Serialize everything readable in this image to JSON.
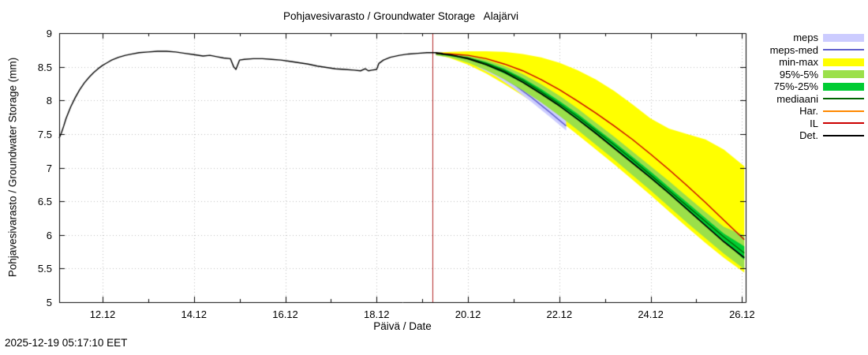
{
  "timestamp": "2025-12-19 05:17:10 EET",
  "chart_data": {
    "type": "line",
    "title": "Pohjavesivarasto / Groundwater Storage   Alajärvi",
    "xlabel": "Päivä / Date",
    "ylabel": "Pohjavesivarasto / Groundwater Storage (mm)",
    "xlim": [
      11.05,
      26.08
    ],
    "ylim": [
      5,
      9
    ],
    "grid": true,
    "grid_color": "#bdbdbd",
    "forecast_start_x": 19.22,
    "forecast_line_color": "#b22222",
    "x_ticks": [
      {
        "x": 12,
        "label": "12.12"
      },
      {
        "x": 14,
        "label": "14.12"
      },
      {
        "x": 16,
        "label": "16.12"
      },
      {
        "x": 18,
        "label": "18.12"
      },
      {
        "x": 20,
        "label": "20.12"
      },
      {
        "x": 22,
        "label": "22.12"
      },
      {
        "x": 24,
        "label": "24.12"
      },
      {
        "x": 26,
        "label": "26.12"
      }
    ],
    "x_minor_ticks": [
      13,
      15,
      17,
      19,
      21,
      23,
      25
    ],
    "y_ticks": [
      {
        "y": 5,
        "label": "5"
      },
      {
        "y": 5.5,
        "label": "5.5"
      },
      {
        "y": 6,
        "label": "6"
      },
      {
        "y": 6.5,
        "label": "6.5"
      },
      {
        "y": 7,
        "label": "7"
      },
      {
        "y": 7.5,
        "label": "7.5"
      },
      {
        "y": 8,
        "label": "8"
      },
      {
        "y": 8.5,
        "label": "8.5"
      },
      {
        "y": 9,
        "label": "9"
      }
    ],
    "legend": [
      {
        "label": "meps",
        "swatch": "band",
        "color": "#ccccff"
      },
      {
        "label": "meps-med",
        "swatch": "line",
        "color": "#6060cc"
      },
      {
        "label": "min-max",
        "swatch": "band",
        "color": "#ffff00"
      },
      {
        "label": "95%-5%",
        "swatch": "band",
        "color": "#9be04a"
      },
      {
        "label": "75%-25%",
        "swatch": "band",
        "color": "#00cc33"
      },
      {
        "label": "mediaani",
        "swatch": "line",
        "color": "#006400"
      },
      {
        "label": "Har.",
        "swatch": "line",
        "color": "#ff8800"
      },
      {
        "label": "IL",
        "swatch": "line",
        "color": "#cc0000"
      },
      {
        "label": "Det.",
        "swatch": "line",
        "color": "#000000"
      }
    ],
    "observed": {
      "name": "observed",
      "color": "#000000",
      "x": [
        11.05,
        11.1,
        11.15,
        11.2,
        11.3,
        11.4,
        11.5,
        11.6,
        11.7,
        11.8,
        11.9,
        12.0,
        12.1,
        12.2,
        12.35,
        12.5,
        12.65,
        12.8,
        13.0,
        13.2,
        13.4,
        13.6,
        13.8,
        14.0,
        14.2,
        14.35,
        14.5,
        14.65,
        14.8,
        14.87,
        14.92,
        15.0,
        15.1,
        15.3,
        15.5,
        15.7,
        15.9,
        16.1,
        16.3,
        16.5,
        16.7,
        16.9,
        17.1,
        17.3,
        17.5,
        17.65,
        17.75,
        17.82,
        17.9,
        18.0,
        18.05,
        18.15,
        18.3,
        18.5,
        18.7,
        18.9,
        19.1,
        19.3,
        19.45
      ],
      "y": [
        7.44,
        7.52,
        7.62,
        7.73,
        7.9,
        8.04,
        8.16,
        8.26,
        8.34,
        8.41,
        8.47,
        8.52,
        8.56,
        8.6,
        8.64,
        8.67,
        8.69,
        8.71,
        8.72,
        8.73,
        8.73,
        8.72,
        8.7,
        8.68,
        8.66,
        8.67,
        8.65,
        8.63,
        8.62,
        8.5,
        8.46,
        8.6,
        8.61,
        8.62,
        8.62,
        8.61,
        8.6,
        8.58,
        8.56,
        8.54,
        8.51,
        8.49,
        8.47,
        8.46,
        8.45,
        8.44,
        8.47,
        8.44,
        8.45,
        8.46,
        8.55,
        8.6,
        8.64,
        8.67,
        8.69,
        8.7,
        8.71,
        8.71,
        8.7
      ]
    },
    "forecast_x": [
      19.3,
      19.6,
      20.0,
      20.4,
      20.8,
      21.2,
      21.6,
      22.0,
      22.4,
      22.8,
      23.2,
      23.6,
      24.0,
      24.4,
      24.8,
      25.2,
      25.6,
      26.05
    ],
    "bands": {
      "minmax": {
        "name": "min-max",
        "color": "#ffff00",
        "x": [
          19.3,
          19.6,
          20.0,
          20.4,
          20.8,
          21.2,
          21.6,
          22.0,
          22.4,
          22.8,
          23.2,
          23.6,
          24.0,
          24.4,
          24.8,
          25.2,
          25.6,
          26.05
        ],
        "upper": [
          8.71,
          8.72,
          8.73,
          8.73,
          8.72,
          8.69,
          8.64,
          8.56,
          8.45,
          8.31,
          8.14,
          7.94,
          7.73,
          7.58,
          7.5,
          7.42,
          7.27,
          7.02
        ],
        "lower": [
          8.68,
          8.63,
          8.53,
          8.4,
          8.24,
          8.07,
          7.89,
          7.7,
          7.49,
          7.27,
          7.05,
          6.82,
          6.59,
          6.35,
          6.11,
          5.88,
          5.66,
          5.44
        ]
      },
      "meps": {
        "name": "meps",
        "color": "#ccccff",
        "x": [
          20.2,
          20.6,
          21.0,
          21.4,
          21.8,
          22.15
        ],
        "upper": [
          8.57,
          8.47,
          8.33,
          8.16,
          7.96,
          7.77
        ],
        "lower": [
          8.5,
          8.36,
          8.18,
          7.97,
          7.75,
          7.55
        ]
      },
      "p95": {
        "name": "95%-5%",
        "color": "#9be04a",
        "x": [
          19.3,
          19.6,
          20.0,
          20.4,
          20.8,
          21.2,
          21.6,
          22.0,
          22.4,
          22.8,
          23.2,
          23.6,
          24.0,
          24.4,
          24.8,
          25.2,
          25.6,
          26.05
        ],
        "upper": [
          8.7,
          8.69,
          8.66,
          8.6,
          8.51,
          8.39,
          8.24,
          8.07,
          7.88,
          7.67,
          7.46,
          7.24,
          7.02,
          6.8,
          6.57,
          6.34,
          6.12,
          5.99
        ],
        "lower": [
          8.67,
          8.64,
          8.56,
          8.45,
          8.31,
          8.15,
          7.97,
          7.77,
          7.56,
          7.34,
          7.12,
          6.89,
          6.66,
          6.42,
          6.18,
          5.95,
          5.72,
          5.49
        ]
      },
      "p75": {
        "name": "75%-25%",
        "color": "#00cc33",
        "x": [
          19.3,
          19.6,
          20.0,
          20.4,
          20.8,
          21.2,
          21.6,
          22.0,
          22.4,
          22.8,
          23.2,
          23.6,
          24.0,
          24.4,
          24.8,
          25.2,
          25.6,
          26.05
        ],
        "upper": [
          8.7,
          8.68,
          8.64,
          8.57,
          8.47,
          8.33,
          8.17,
          7.99,
          7.8,
          7.59,
          7.38,
          7.16,
          6.94,
          6.71,
          6.48,
          6.25,
          6.02,
          5.83
        ],
        "lower": [
          8.69,
          8.66,
          8.61,
          8.52,
          8.4,
          8.26,
          8.09,
          7.91,
          7.71,
          7.5,
          7.29,
          7.07,
          6.84,
          6.61,
          6.37,
          6.14,
          5.91,
          5.63
        ]
      }
    },
    "lines": {
      "meps_med": {
        "name": "meps-med",
        "color": "#6060cc",
        "width": 1.4,
        "x": [
          20.2,
          20.6,
          21.0,
          21.4,
          21.8,
          22.15
        ],
        "y": [
          8.53,
          8.41,
          8.24,
          8.04,
          7.82,
          7.62
        ]
      },
      "mediaani": {
        "name": "mediaani",
        "color": "#006400",
        "width": 1.4,
        "y": [
          8.7,
          8.67,
          8.63,
          8.55,
          8.44,
          8.3,
          8.13,
          7.95,
          7.76,
          7.55,
          7.34,
          7.12,
          6.89,
          6.66,
          6.43,
          6.2,
          5.97,
          5.73
        ]
      },
      "il": {
        "name": "IL",
        "color": "#cc0000",
        "width": 1.4,
        "y": [
          8.7,
          8.69,
          8.67,
          8.62,
          8.54,
          8.44,
          8.31,
          8.16,
          7.99,
          7.81,
          7.62,
          7.42,
          7.2,
          6.97,
          6.73,
          6.48,
          6.22,
          5.93
        ]
      },
      "det": {
        "name": "Det.",
        "color": "#000000",
        "width": 1.7,
        "y": [
          8.7,
          8.68,
          8.62,
          8.53,
          8.42,
          8.27,
          8.1,
          7.92,
          7.72,
          7.51,
          7.29,
          7.07,
          6.85,
          6.62,
          6.38,
          6.14,
          5.9,
          5.66
        ]
      }
    }
  }
}
